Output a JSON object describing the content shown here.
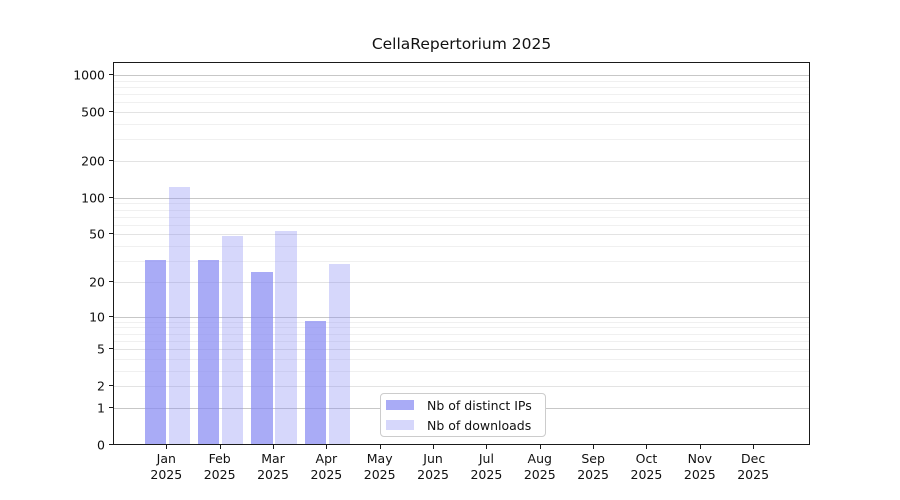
{
  "title": "CellaRepertorium 2025",
  "legend": {
    "items": [
      {
        "label": "Nb of distinct IPs",
        "color": "rgba(136,138,242,0.72)"
      },
      {
        "label": "Nb of downloads",
        "color": "rgba(136,138,242,0.34)"
      }
    ]
  },
  "chart_data": {
    "type": "bar",
    "title": "CellaRepertorium 2025",
    "categories": [
      "Jan",
      "Feb",
      "Mar",
      "Apr",
      "May",
      "Jun",
      "Jul",
      "Aug",
      "Sep",
      "Oct",
      "Nov",
      "Dec"
    ],
    "category_year": "2025",
    "series": [
      {
        "name": "Nb of distinct IPs",
        "color": "rgba(136,138,242,0.72)",
        "values": [
          30,
          30,
          24,
          9,
          0,
          0,
          0,
          0,
          0,
          0,
          0,
          0
        ]
      },
      {
        "name": "Nb of downloads",
        "color": "rgba(136,138,242,0.34)",
        "values": [
          120,
          48,
          52,
          28,
          0,
          0,
          0,
          0,
          0,
          0,
          0,
          0
        ]
      }
    ],
    "xlabel": "",
    "ylabel": "",
    "y_axis": {
      "scale": "log1p",
      "ticks": [
        0,
        1,
        2,
        5,
        10,
        20,
        50,
        100,
        200,
        500,
        1000
      ],
      "minor_ticks": [
        3,
        4,
        6,
        7,
        8,
        9,
        30,
        40,
        60,
        70,
        80,
        90,
        300,
        400,
        600,
        700,
        800,
        900
      ],
      "range": [
        0,
        1200
      ]
    },
    "grid": true,
    "legend_position": "lower-center-inside"
  }
}
